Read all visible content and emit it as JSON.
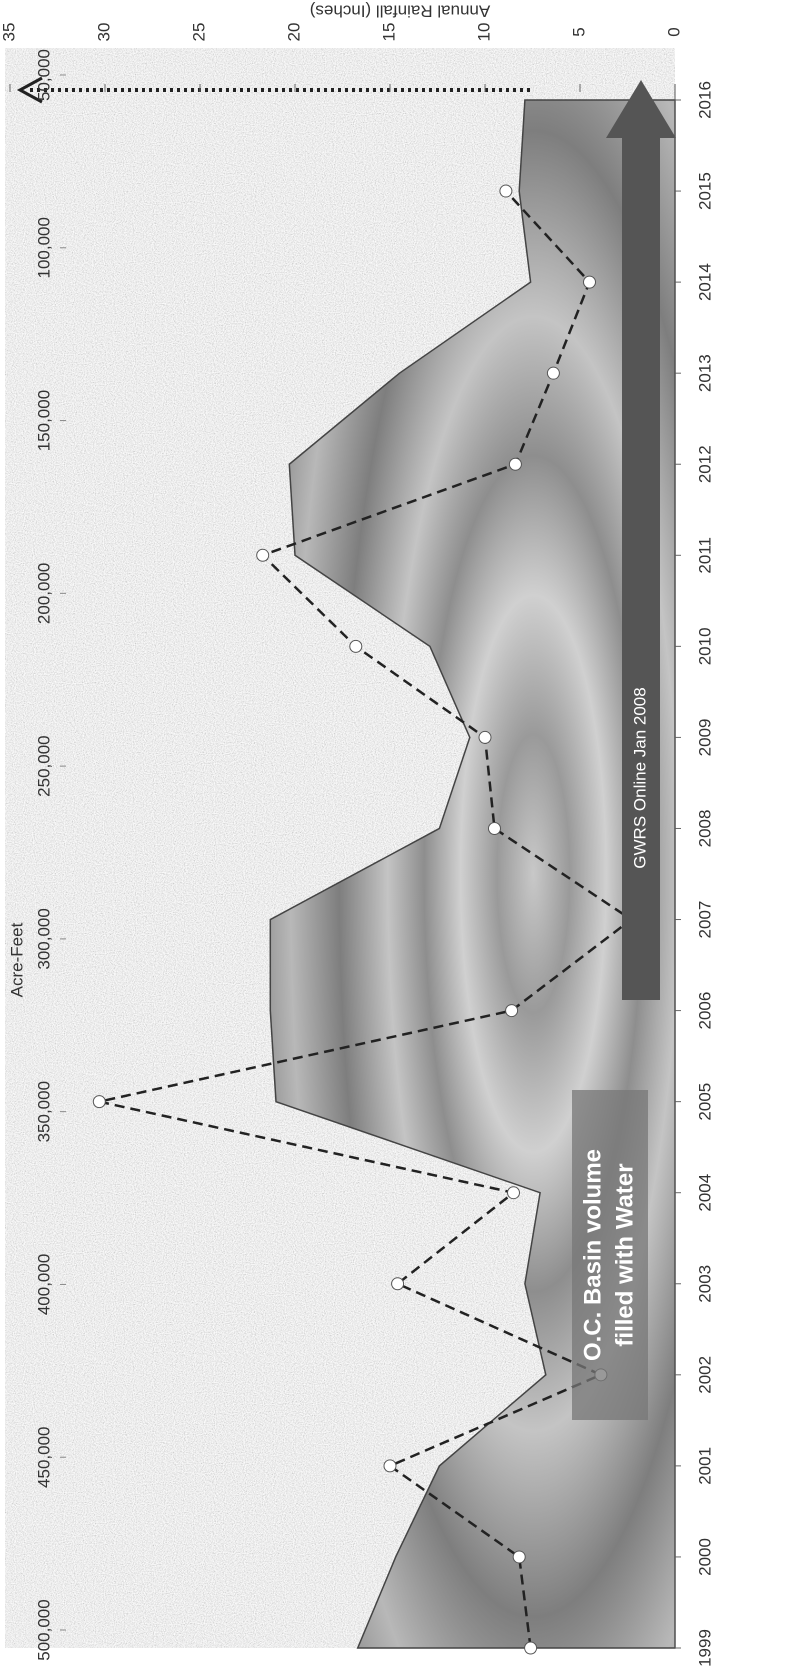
{
  "chart_data": {
    "type": "line",
    "y_label": "Annual Rainfall (Inches)",
    "x2_label": "Acre-Feet",
    "annotations": [
      "O.C. Basin volume",
      "filled with Water",
      "GWRS Online Jan 2008"
    ],
    "x": [
      1999,
      2000,
      2001,
      2002,
      2003,
      2004,
      2005,
      2006,
      2007,
      2008,
      2009,
      2010,
      2011,
      2012,
      2013,
      2014,
      2015,
      2016
    ],
    "xlim": [
      1999,
      2016
    ],
    "xticks": [
      1999,
      2000,
      2001,
      2002,
      2003,
      2004,
      2005,
      2006,
      2007,
      2008,
      2009,
      2010,
      2011,
      2012,
      2013,
      2014,
      2015,
      2016
    ],
    "ylim": [
      0,
      35
    ],
    "yticks": [
      0,
      5,
      10,
      15,
      20,
      25,
      30,
      35
    ],
    "x2lim": [
      500000,
      50000
    ],
    "x2ticks": [
      {
        "value": 50000,
        "label": "50,000"
      },
      {
        "value": 100000,
        "label": "100,000"
      },
      {
        "value": 150000,
        "label": "150,000"
      },
      {
        "value": 200000,
        "label": "200,000"
      },
      {
        "value": 250000,
        "label": "250,000"
      },
      {
        "value": 300000,
        "label": "300,000"
      },
      {
        "value": 350000,
        "label": "350,000"
      },
      {
        "value": 400000,
        "label": "400,000"
      },
      {
        "value": 450000,
        "label": "450,000"
      },
      {
        "value": 500000,
        "label": "500,000"
      }
    ],
    "series": [
      {
        "type": "area",
        "color": "#8c8c8c",
        "values": [
          16.7,
          14.7,
          12.4,
          6.8,
          7.9,
          7.1,
          21,
          21.3,
          21.3,
          12.4,
          10.8,
          12.9,
          20,
          20.3,
          14.5,
          7.6,
          8.2,
          7.9
        ]
      },
      {
        "type": "line",
        "color": "#222222",
        "values": [
          7.6,
          8.2,
          15,
          3.9,
          14.6,
          8.5,
          30.3,
          8.6,
          2.3,
          9.5,
          10,
          16.8,
          21.7,
          8.4,
          6.4,
          4.5,
          8.9,
          null
        ]
      }
    ]
  }
}
